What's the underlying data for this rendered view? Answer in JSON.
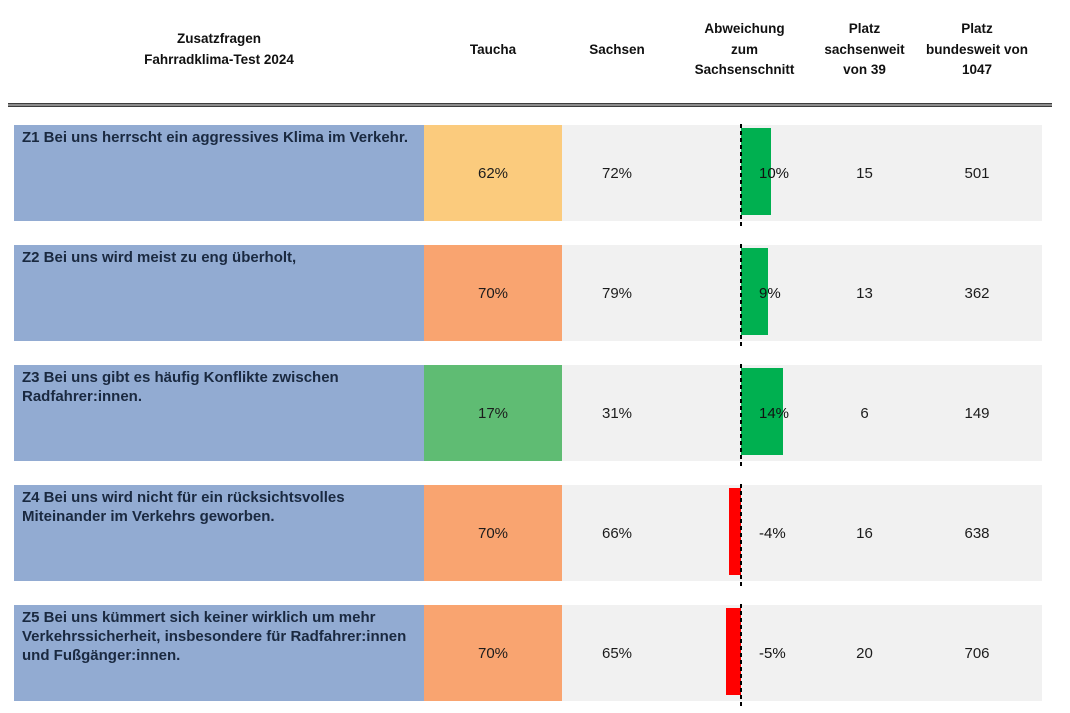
{
  "header": {
    "question": "Zusatzfragen\nFahrradklima-Test 2024",
    "taucha": "Taucha",
    "sachsen": "Sachsen",
    "deviation": "Abweichung\nzum\nSachsenschnitt",
    "platz_sachsen": "Platz\nsachsenweit\nvon 39",
    "platz_bund": "Platz\nbundesweit von\n1047"
  },
  "colors": {
    "question_bg": "#92ABD2",
    "row_bg": "#F1F1F1",
    "taucha_light_orange": "#FBCB7D",
    "taucha_orange": "#F9A470",
    "taucha_green": "#5FBC73",
    "bar_positive": "#00B050",
    "bar_negative": "#FF0000",
    "divider": "#3d3d3d"
  },
  "rows": [
    {
      "question": "Z1 Bei uns herrscht ein aggressives Klima im Verkehr.",
      "taucha": "62%",
      "taucha_color": "#FBCB7D",
      "sachsen": "72%",
      "deviation_label": "10%",
      "deviation_value": 10,
      "platz_sachsen": "15",
      "platz_bund": "501"
    },
    {
      "question": "Z2 Bei uns wird meist zu eng überholt,",
      "taucha": "70%",
      "taucha_color": "#F9A470",
      "sachsen": "79%",
      "deviation_label": "9%",
      "deviation_value": 9,
      "platz_sachsen": "13",
      "platz_bund": "362"
    },
    {
      "question": "Z3 Bei uns gibt es häufig Konflikte zwischen Radfahrer:innen.",
      "taucha": "17%",
      "taucha_color": "#5FBC73",
      "sachsen": "31%",
      "deviation_label": "14%",
      "deviation_value": 14,
      "platz_sachsen": "6",
      "platz_bund": "149"
    },
    {
      "question": "Z4 Bei uns wird nicht für ein rücksichtsvolles Miteinander im Verkehrs geworben.",
      "taucha": "70%",
      "taucha_color": "#F9A470",
      "sachsen": "66%",
      "deviation_label": "-4%",
      "deviation_value": -4,
      "platz_sachsen": "16",
      "platz_bund": "638"
    },
    {
      "question": "Z5 Bei uns kümmert sich keiner wirklich um mehr Verkehrssicherheit, insbesondere für Radfahrer:innen und Fußgänger:innen.",
      "taucha": "70%",
      "taucha_color": "#F9A470",
      "sachsen": "65%",
      "deviation_label": "-5%",
      "deviation_value": -5,
      "platz_sachsen": "20",
      "platz_bund": "706"
    }
  ],
  "chart_data": {
    "type": "table",
    "title": "Zusatzfragen Fahrradklima-Test 2024",
    "columns": [
      "Zusatzfragen Fahrradklima-Test 2024",
      "Taucha",
      "Sachsen",
      "Abweichung zum Sachsenschnitt",
      "Platz sachsenweit von 39",
      "Platz bundesweit von 1047"
    ],
    "rows": [
      [
        "Z1 Bei uns herrscht ein aggressives Klima im Verkehr.",
        "62%",
        "72%",
        "10%",
        15,
        501
      ],
      [
        "Z2 Bei uns wird meist zu eng überholt,",
        "70%",
        "79%",
        "9%",
        13,
        362
      ],
      [
        "Z3 Bei uns gibt es häufig Konflikte zwischen Radfahrer:innen.",
        "17%",
        "31%",
        "14%",
        6,
        149
      ],
      [
        "Z4 Bei uns wird nicht für ein rücksichtsvolles Miteinander im Verkehrs geworben.",
        "70%",
        "66%",
        "-4%",
        16,
        638
      ],
      [
        "Z5 Bei uns kümmert sich keiner wirklich um mehr Verkehrssicherheit, insbesondere für Radfahrer:innen und Fußgänger:innen.",
        "70%",
        "65%",
        "-5%",
        20,
        706
      ]
    ],
    "deviation_series": {
      "name": "Abweichung zum Sachsenschnitt (Prozentpunkte)",
      "categories": [
        "Z1",
        "Z2",
        "Z3",
        "Z4",
        "Z5"
      ],
      "values": [
        10,
        9,
        14,
        -4,
        -5
      ],
      "bar_type": "bar",
      "positive_color": "#00B050",
      "negative_color": "#FF0000",
      "zero_axis": "dashed"
    }
  }
}
